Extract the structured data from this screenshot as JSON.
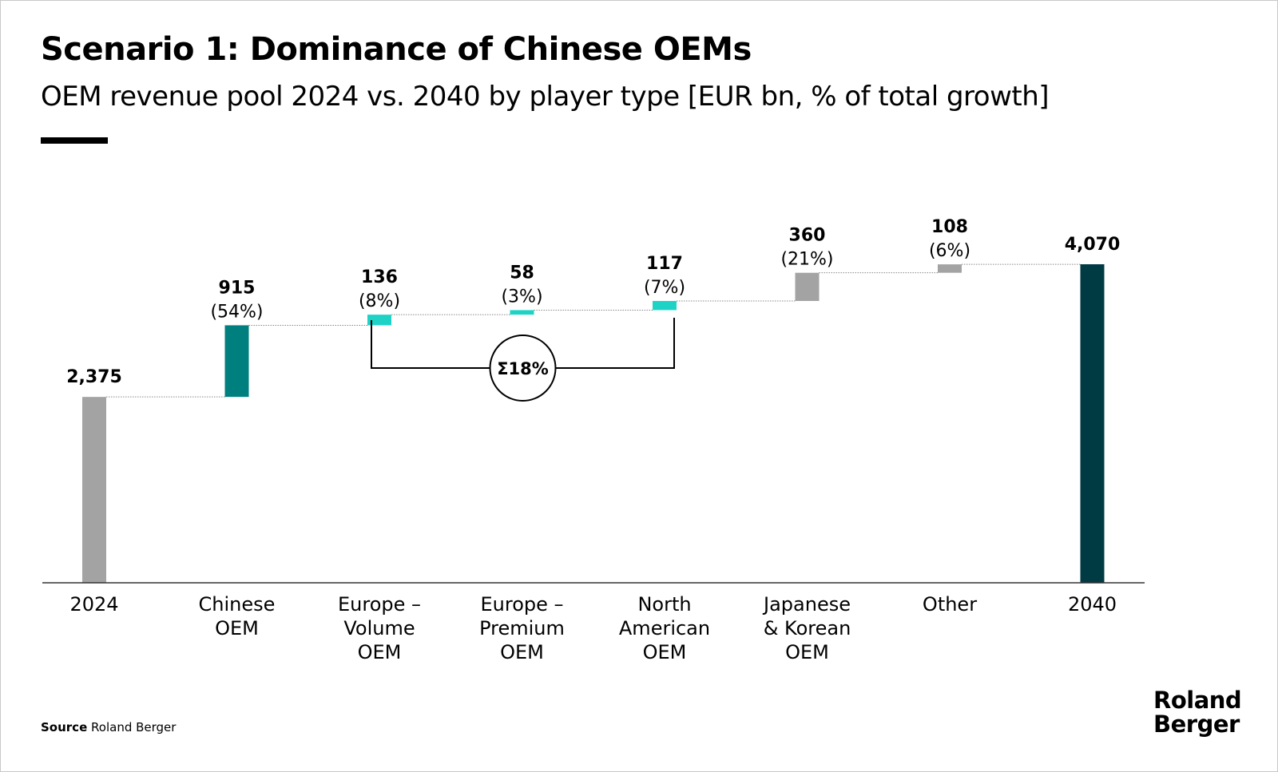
{
  "header": {
    "title": "Scenario 1: Dominance of Chinese OEMs",
    "subtitle": "OEM revenue pool 2024 vs. 2040 by player type [EUR bn, % of total growth]"
  },
  "footer": {
    "source_label": "Source",
    "source_text": "Roland Berger",
    "logo_line1": "Roland",
    "logo_line2": "Berger"
  },
  "chart_data": {
    "type": "bar",
    "subtype": "waterfall",
    "title": "Scenario 1: Dominance of Chinese OEMs",
    "subtitle": "OEM revenue pool 2024 vs. 2040 by player type [EUR bn, % of total growth]",
    "units": "EUR bn",
    "ylim": [
      0,
      4070
    ],
    "grid": false,
    "legend": "none",
    "categories": [
      [
        "2024"
      ],
      [
        "Chinese",
        "OEM"
      ],
      [
        "Europe –",
        "Volume",
        "OEM"
      ],
      [
        "Europe –",
        "Premium",
        "OEM"
      ],
      [
        "North",
        "American",
        "OEM"
      ],
      [
        "Japanese",
        "& Korean",
        "OEM"
      ],
      [
        "Other"
      ],
      [
        "2040"
      ]
    ],
    "bars": [
      {
        "kind": "total",
        "value": 2375,
        "label": "2,375",
        "share": "",
        "color": "#a3a3a3"
      },
      {
        "kind": "delta",
        "value": 915,
        "label": "915",
        "share": "(54%)",
        "color": "#007f7f"
      },
      {
        "kind": "delta",
        "value": 136,
        "label": "136",
        "share": "(8%)",
        "color": "#1ed3c6"
      },
      {
        "kind": "delta",
        "value": 58,
        "label": "58",
        "share": "(3%)",
        "color": "#1ed3c6"
      },
      {
        "kind": "delta",
        "value": 117,
        "label": "117",
        "share": "(7%)",
        "color": "#1ed3c6"
      },
      {
        "kind": "delta",
        "value": 360,
        "label": "360",
        "share": "(21%)",
        "color": "#a3a3a3"
      },
      {
        "kind": "delta",
        "value": 108,
        "label": "108",
        "share": "(6%)",
        "color": "#a3a3a3"
      },
      {
        "kind": "total",
        "value": 4070,
        "label": "4,070",
        "share": "",
        "color": "#003b44"
      }
    ],
    "annotation": {
      "text": "Σ18%",
      "from_index": 2,
      "to_index": 4
    }
  }
}
